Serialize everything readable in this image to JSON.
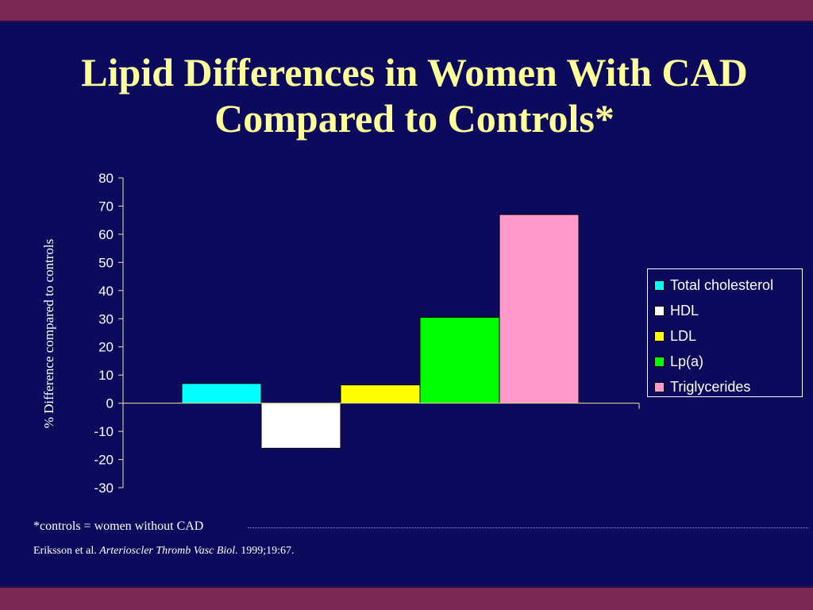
{
  "title_line1": "Lipid Differences in Women With CAD",
  "title_line2": "Compared to Controls*",
  "footnote": "*controls = women without CAD",
  "citation": {
    "authors": "Eriksson et al. ",
    "journal": "Arterioscler Thromb Vasc Biol.",
    "details": " 1999;19:67."
  },
  "colors": {
    "background": "#0b0a5c",
    "band": "#7a2753",
    "title": "#ffff99"
  },
  "chart_data": {
    "type": "bar",
    "title": "",
    "xlabel": "",
    "ylabel": "% Difference compared to controls",
    "ylim": [
      -30,
      80
    ],
    "yticks": [
      80,
      70,
      60,
      50,
      40,
      30,
      20,
      10,
      0,
      -10,
      -20,
      -30
    ],
    "grid": false,
    "legend_position": "right",
    "series": [
      {
        "name": "Total cholesterol",
        "values": [
          7
        ],
        "color": "#00ffff"
      },
      {
        "name": "HDL",
        "values": [
          -16
        ],
        "color": "#ffffff"
      },
      {
        "name": "LDL",
        "values": [
          6.5
        ],
        "color": "#ffff00"
      },
      {
        "name": "Lp(a)",
        "values": [
          30.5
        ],
        "color": "#00ff00"
      },
      {
        "name": "Triglycerides",
        "values": [
          67
        ],
        "color": "#ff99cc"
      }
    ]
  }
}
